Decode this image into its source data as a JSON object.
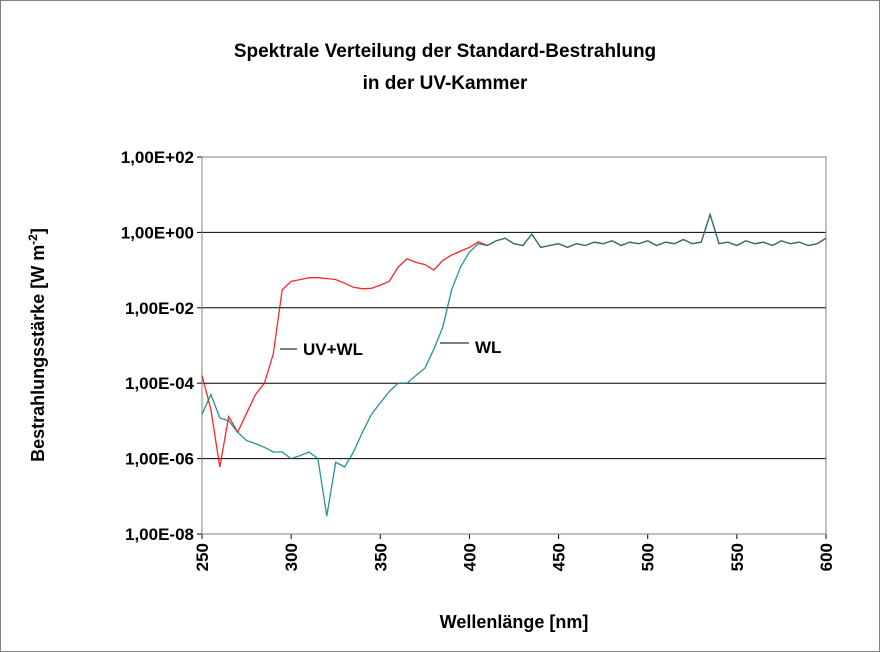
{
  "chart_data": {
    "type": "line",
    "title": [
      "Spektrale Verteilung der Standard-Bestrahlung",
      "in der UV-Kammer"
    ],
    "x_label": "Wellenlänge [nm]",
    "y_label": "Bestrahlungsstärke [W m",
    "y_label_sup": "-2",
    "y_label_end": "]",
    "y_log": true,
    "grid": true,
    "xlim": [
      250,
      600
    ],
    "xticks": [
      250,
      300,
      350,
      400,
      450,
      500,
      550,
      600
    ],
    "ylim": [
      1e-08,
      100
    ],
    "yticks": [
      {
        "value": 1e-08,
        "label": "1,00E-08"
      },
      {
        "value": 1e-06,
        "label": "1,00E-06"
      },
      {
        "value": 0.0001,
        "label": "1,00E-04"
      },
      {
        "value": 0.01,
        "label": "1,00E-02"
      },
      {
        "value": 1,
        "label": "1,00E+00"
      },
      {
        "value": 100,
        "label": "1,00E+02"
      }
    ],
    "x": [
      250,
      255,
      260,
      265,
      270,
      275,
      280,
      285,
      290,
      295,
      300,
      305,
      310,
      315,
      320,
      325,
      330,
      335,
      340,
      345,
      350,
      355,
      360,
      365,
      370,
      375,
      380,
      385,
      390,
      395,
      400,
      405,
      410,
      415,
      420,
      425,
      430,
      435,
      440,
      445,
      450,
      455,
      460,
      465,
      470,
      475,
      480,
      485,
      490,
      495,
      500,
      505,
      510,
      515,
      520,
      525,
      530,
      535,
      540,
      545,
      550,
      555,
      560,
      565,
      570,
      575,
      580,
      585,
      590,
      595,
      600
    ],
    "series": [
      {
        "name": "UV+WL",
        "color": "#ff0000",
        "values": [
          0.00016,
          2e-05,
          6e-07,
          1.3e-05,
          5e-06,
          1.6e-05,
          5e-05,
          0.0001,
          0.0006,
          0.03,
          0.05,
          0.056,
          0.063,
          0.063,
          0.06,
          0.056,
          0.045,
          0.035,
          0.032,
          0.033,
          0.04,
          0.05,
          0.12,
          0.2,
          0.16,
          0.14,
          0.1,
          0.18,
          0.25,
          0.32,
          0.4,
          0.56,
          0.45,
          0.6,
          0.7,
          0.5,
          0.45,
          0.9,
          0.4,
          0.45,
          0.5,
          0.4,
          0.5,
          0.45,
          0.55,
          0.5,
          0.6,
          0.45,
          0.55,
          0.5,
          0.6,
          0.45,
          0.55,
          0.5,
          0.65,
          0.5,
          0.55,
          3.0,
          0.5,
          0.55,
          0.45,
          0.6,
          0.5,
          0.55,
          0.45,
          0.6,
          0.5,
          0.55,
          0.45,
          0.5,
          0.7
        ]
      },
      {
        "name": "WL",
        "color": "#008080",
        "values": [
          1.5e-05,
          5e-05,
          1.2e-05,
          1e-05,
          5e-06,
          3e-06,
          2.5e-06,
          2e-06,
          1.5e-06,
          1.5e-06,
          1e-06,
          1.2e-06,
          1.5e-06,
          1e-06,
          3e-08,
          8e-07,
          6e-07,
          1.5e-06,
          5e-06,
          1.5e-05,
          3e-05,
          6e-05,
          0.0001,
          0.0001,
          0.00016,
          0.00025,
          0.0008,
          0.003,
          0.03,
          0.12,
          0.3,
          0.5,
          0.45,
          0.6,
          0.7,
          0.5,
          0.45,
          0.9,
          0.4,
          0.45,
          0.5,
          0.4,
          0.5,
          0.45,
          0.55,
          0.5,
          0.6,
          0.45,
          0.55,
          0.5,
          0.6,
          0.45,
          0.55,
          0.5,
          0.65,
          0.5,
          0.55,
          3.0,
          0.5,
          0.55,
          0.45,
          0.6,
          0.5,
          0.55,
          0.45,
          0.6,
          0.5,
          0.55,
          0.45,
          0.5,
          0.7
        ]
      }
    ]
  }
}
